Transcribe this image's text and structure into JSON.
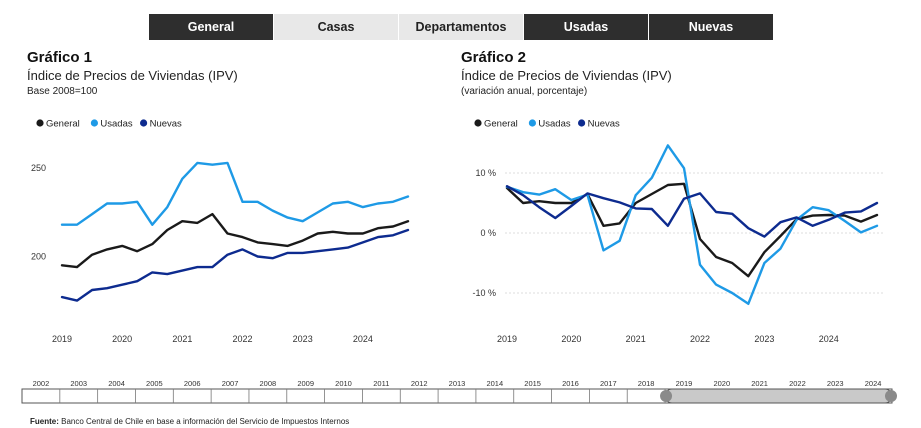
{
  "tabs": [
    {
      "label": "General",
      "style": "dark"
    },
    {
      "label": "Casas",
      "style": "light"
    },
    {
      "label": "Departamentos",
      "style": "light"
    },
    {
      "label": "Usadas",
      "style": "dark"
    },
    {
      "label": "Nuevas",
      "style": "dark"
    }
  ],
  "colors": {
    "general": "#1a1a1a",
    "usadas": "#1e9ae6",
    "nuevas": "#0d2b8f",
    "gridline": "#dcdcdc",
    "tab_dark": "#2e2e2e"
  },
  "chart_data": [
    {
      "type": "line",
      "title": "Gráfico 1",
      "subtitle": "Índice de Precios de Viviendas (IPV)",
      "note": "Base 2008=100",
      "x_tick_labels": [
        "2019",
        "2020",
        "2021",
        "2022",
        "2023",
        "2024"
      ],
      "y_tick_labels": [
        "250",
        "200"
      ],
      "ylim": [
        164,
        266
      ],
      "y_ticks": [
        250,
        200
      ],
      "grid": false,
      "legend": "top-left",
      "x": [
        2019.0,
        2019.25,
        2019.5,
        2019.75,
        2020.0,
        2020.25,
        2020.5,
        2020.75,
        2021.0,
        2021.25,
        2021.5,
        2021.75,
        2022.0,
        2022.25,
        2022.5,
        2022.75,
        2023.0,
        2023.25,
        2023.5,
        2023.75,
        2024.0,
        2024.25,
        2024.5,
        2024.75
      ],
      "series": [
        {
          "name": "General",
          "color_key": "general",
          "values": [
            195,
            194,
            201,
            204,
            206,
            203,
            207,
            215,
            220,
            219,
            224,
            213,
            211,
            208,
            207,
            206,
            209,
            213,
            214,
            213,
            213,
            216,
            217,
            220
          ]
        },
        {
          "name": "Usadas",
          "color_key": "usadas",
          "values": [
            218,
            218,
            224,
            230,
            230,
            231,
            218,
            228,
            244,
            253,
            252,
            253,
            231,
            231,
            226,
            222,
            220,
            225,
            230,
            231,
            228,
            230,
            231,
            234
          ]
        },
        {
          "name": "Nuevas",
          "color_key": "nuevas",
          "values": [
            177,
            175,
            181,
            182,
            184,
            186,
            191,
            190,
            192,
            194,
            194,
            201,
            204,
            200,
            199,
            202,
            202,
            203,
            204,
            205,
            208,
            211,
            212,
            215
          ]
        }
      ]
    },
    {
      "type": "line",
      "title": "Gráfico 2",
      "subtitle": "Índice de Precios de Viviendas (IPV)",
      "note": "(variación anual, porcentaje)",
      "x_tick_labels": [
        "2019",
        "2020",
        "2021",
        "2022",
        "2023",
        "2024"
      ],
      "y_tick_labels": [
        "10 %",
        "0 %",
        "-10 %"
      ],
      "ylim": [
        -14.5,
        15.5
      ],
      "y_ticks": [
        10,
        0,
        -10
      ],
      "grid": true,
      "legend": "top-left",
      "x": [
        2019.0,
        2019.25,
        2019.5,
        2019.75,
        2020.0,
        2020.25,
        2020.5,
        2020.75,
        2021.0,
        2021.25,
        2021.5,
        2021.75,
        2022.0,
        2022.25,
        2022.5,
        2022.75,
        2023.0,
        2023.25,
        2023.5,
        2023.75,
        2024.0,
        2024.25,
        2024.5,
        2024.75
      ],
      "series": [
        {
          "name": "General",
          "color_key": "general",
          "values": [
            7.5,
            5.0,
            5.3,
            5.0,
            5.0,
            6.5,
            1.2,
            1.6,
            5.0,
            6.5,
            8.0,
            8.2,
            -1.0,
            -4.0,
            -5.0,
            -7.2,
            -3.2,
            -0.5,
            2.3,
            2.9,
            3.0,
            2.9,
            1.9,
            3.0
          ]
        },
        {
          "name": "Usadas",
          "color_key": "usadas",
          "values": [
            7.7,
            6.8,
            6.4,
            7.3,
            5.5,
            6.4,
            -2.9,
            -1.3,
            6.3,
            9.2,
            14.6,
            10.8,
            -5.3,
            -8.6,
            -10.0,
            -11.8,
            -5.0,
            -2.6,
            2.2,
            4.3,
            3.8,
            2.0,
            0.1,
            1.2
          ]
        },
        {
          "name": "Nuevas",
          "color_key": "nuevas",
          "values": [
            7.8,
            6.3,
            4.3,
            2.5,
            4.5,
            6.6,
            5.8,
            5.1,
            4.1,
            4.0,
            1.2,
            5.7,
            6.6,
            3.5,
            3.2,
            0.8,
            -0.6,
            1.8,
            2.6,
            1.2,
            2.2,
            3.4,
            3.6,
            5.0
          ]
        }
      ]
    }
  ],
  "timeline": {
    "years": [
      "2002",
      "2003",
      "2004",
      "2005",
      "2006",
      "2007",
      "2008",
      "2009",
      "2010",
      "2011",
      "2012",
      "2013",
      "2014",
      "2015",
      "2016",
      "2017",
      "2018",
      "2019",
      "2020",
      "2021",
      "2022",
      "2023",
      "2024"
    ],
    "selected_from": "2019",
    "selected_to": "2024"
  },
  "footer": {
    "source_label": "Fuente:",
    "source_text": " Banco Central de Chile en base a información del Servicio de Impuestos Internos"
  }
}
